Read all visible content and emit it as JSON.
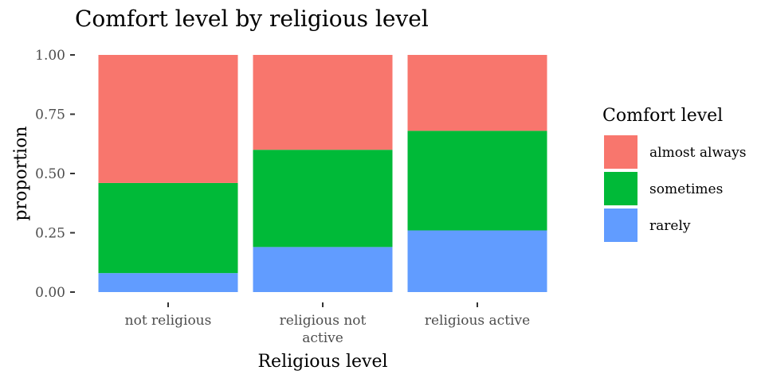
{
  "chart_data": {
    "type": "bar",
    "stacked": true,
    "title": "Comfort level by religious level",
    "xlabel": "Religious level",
    "ylabel": "proportion",
    "ylim": [
      0,
      1
    ],
    "yticks": [
      "0.00",
      "0.25",
      "0.50",
      "0.75",
      "1.00"
    ],
    "categories": [
      [
        "not religious"
      ],
      [
        "religious not",
        "active"
      ],
      [
        "religious active"
      ]
    ],
    "series": [
      {
        "name": "rarely",
        "color": "#619CFF",
        "values": [
          0.08,
          0.19,
          0.26
        ]
      },
      {
        "name": "sometimes",
        "color": "#00BA38",
        "values": [
          0.38,
          0.41,
          0.42
        ]
      },
      {
        "name": "almost always",
        "color": "#F8766D",
        "values": [
          0.54,
          0.4,
          0.32
        ]
      }
    ],
    "legend": {
      "title": "Comfort level",
      "order": [
        "almost always",
        "sometimes",
        "rarely"
      ],
      "position": "right"
    },
    "grid": false
  }
}
